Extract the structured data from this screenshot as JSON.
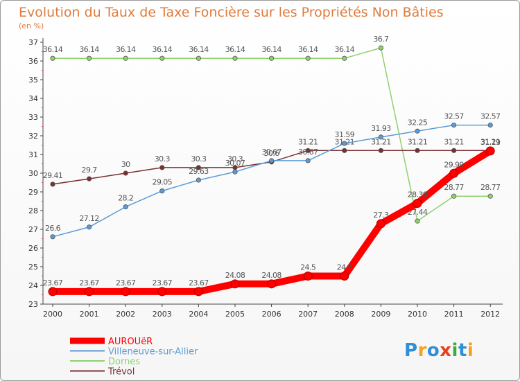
{
  "title": "Evolution du Taux de Taxe Foncière sur les Propriétés Non Bâties",
  "subtitle": "(en %)",
  "logo": {
    "letters": [
      "P",
      "r",
      "o",
      "x",
      "i",
      "t",
      "i"
    ],
    "colors": [
      "#2e8fd6",
      "#f2a21c",
      "#2e8fd6",
      "#e8401c",
      "#3daa3a",
      "#2e8fd6",
      "#f2a21c"
    ]
  },
  "chart_data": {
    "type": "line",
    "x": [
      "2000",
      "2001",
      "2002",
      "2003",
      "2004",
      "2005",
      "2006",
      "2007",
      "2008",
      "2009",
      "2010",
      "2011",
      "2012"
    ],
    "ylim": [
      23,
      37
    ],
    "yticks": [
      23,
      24,
      25,
      26,
      27,
      28,
      29,
      30,
      31,
      32,
      33,
      34,
      35,
      36,
      37
    ],
    "grid": false,
    "legend_position": "bottom-left",
    "series": [
      {
        "name": "Dornes",
        "color": "#8ed16c",
        "values": [
          36.14,
          36.14,
          36.14,
          36.14,
          36.14,
          36.14,
          36.14,
          36.14,
          36.14,
          36.7,
          27.44,
          28.77,
          28.77
        ],
        "labels": [
          "36.14",
          "36.14",
          "36.14",
          "36.14",
          "36.14",
          "36.14",
          "36.14",
          "36.14",
          "36.14",
          "36.7",
          "27.44",
          "28.77",
          "28.77"
        ]
      },
      {
        "name": "Trévol",
        "color": "#7a3030",
        "values": [
          29.41,
          29.7,
          30,
          30.3,
          30.3,
          30.3,
          30.6,
          31.21,
          31.21,
          31.21,
          31.21,
          31.21,
          31.21
        ],
        "labels": [
          "29.41",
          "29.7",
          "30",
          "30.3",
          "30.3",
          "30.3",
          "30.6",
          "31.21",
          "31.21",
          "31.21",
          "31.21",
          "31.21",
          "31.21"
        ]
      },
      {
        "name": "Villeneuve-sur-Allier",
        "color": "#5b9bd5",
        "values": [
          26.6,
          27.12,
          28.2,
          29.05,
          29.63,
          30.07,
          30.67,
          30.67,
          31.59,
          31.93,
          32.25,
          32.57,
          32.57
        ],
        "labels": [
          "26.6",
          "27.12",
          "28.2",
          "29.05",
          "29.63",
          "30.07",
          "30.67",
          "30.67",
          "31.59",
          "31.93",
          "32.25",
          "32.57",
          "32.57"
        ]
      },
      {
        "name": "AUROUëR",
        "color": "#ff0000",
        "values": [
          23.67,
          23.67,
          23.67,
          23.67,
          23.67,
          24.08,
          24.08,
          24.5,
          24.5,
          27.3,
          28.39,
          29.99,
          31.19
        ],
        "labels": [
          "23.67",
          "23.67",
          "23.67",
          "23.67",
          "23.67",
          "24.08",
          "24.08",
          "24.5",
          "24.5",
          "27.3",
          "28.39",
          "29.99",
          "31.19"
        ]
      }
    ],
    "legend": [
      "AUROUëR",
      "Villeneuve-sur-Allier",
      "Dornes",
      "Trévol"
    ]
  }
}
